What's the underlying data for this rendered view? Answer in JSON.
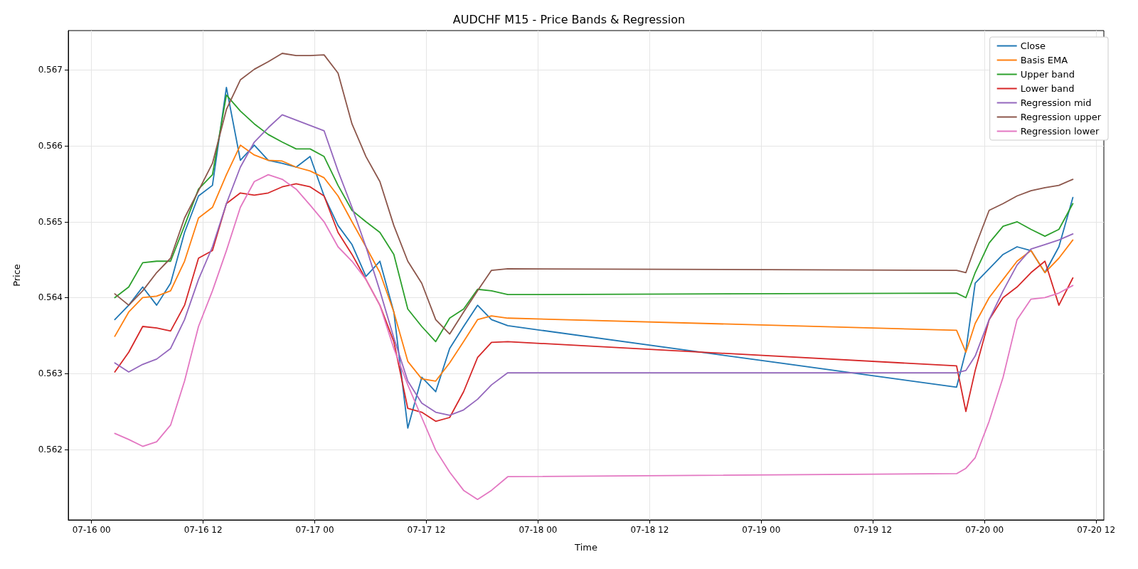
{
  "chart_data": {
    "type": "line",
    "title": "AUDCHF M15 - Price Bands & Regression",
    "xlabel": "Time",
    "ylabel": "Price",
    "x": [
      "--07-16T02:30",
      "--07-16T04:00",
      "--07-16T05:30",
      "--07-16T07:00",
      "--07-16T08:30",
      "--07-16T10:00",
      "--07-16T11:30",
      "--07-16T13:00",
      "--07-16T14:30",
      "--07-16T16:00",
      "--07-16T17:30",
      "--07-16T19:00",
      "--07-16T20:30",
      "--07-16T22:00",
      "--07-16T23:30",
      "--07-17T01:00",
      "--07-17T02:30",
      "--07-17T04:00",
      "--07-17T05:30",
      "--07-17T07:00",
      "--07-17T08:30",
      "--07-17T10:00",
      "--07-17T11:30",
      "--07-17T13:00",
      "--07-17T14:30",
      "--07-17T16:00",
      "--07-17T17:30",
      "--07-17T19:00",
      "--07-17T20:45",
      "--07-19T21:00",
      "--07-19T22:00",
      "--07-19T23:00",
      "--07-20T00:30",
      "--07-20T02:00",
      "--07-20T03:30",
      "--07-20T05:00",
      "--07-20T06:30",
      "--07-20T08:00",
      "--07-20T09:30"
    ],
    "series": [
      {
        "name": "Close",
        "color": "#1f77b4",
        "values": [
          0.56371,
          0.5639,
          0.56414,
          0.5639,
          0.56419,
          0.56486,
          0.56534,
          0.56548,
          0.56677,
          0.56581,
          0.56601,
          0.56581,
          0.56577,
          0.56572,
          0.56586,
          0.56534,
          0.56495,
          0.5647,
          0.56428,
          0.56448,
          0.56381,
          0.56228,
          0.56295,
          0.56276,
          0.56333,
          0.56362,
          0.5639,
          0.56371,
          0.56363,
          0.56282,
          0.5633,
          0.56419,
          0.56438,
          0.56457,
          0.56467,
          0.56462,
          0.56433,
          0.56467,
          0.56532
        ]
      },
      {
        "name": "Basis EMA",
        "color": "#ff7f0e",
        "values": [
          0.56349,
          0.56381,
          0.564,
          0.56402,
          0.56409,
          0.56448,
          0.56505,
          0.56519,
          0.56562,
          0.56601,
          0.56588,
          0.56581,
          0.5658,
          0.56572,
          0.56567,
          0.56558,
          0.56534,
          0.565,
          0.56467,
          0.56433,
          0.56381,
          0.56316,
          0.56293,
          0.5629,
          0.56314,
          0.56342,
          0.56371,
          0.56376,
          0.56373,
          0.56357,
          0.56328,
          0.56366,
          0.564,
          0.56424,
          0.56448,
          0.56462,
          0.56433,
          0.56452,
          0.56476
        ]
      },
      {
        "name": "Upper band",
        "color": "#2ca02c",
        "values": [
          0.564,
          0.56414,
          0.56446,
          0.56448,
          0.56448,
          0.56495,
          0.56543,
          0.56562,
          0.56667,
          0.56646,
          0.56629,
          0.56615,
          0.56605,
          0.56596,
          0.56596,
          0.56586,
          0.56548,
          0.56515,
          0.565,
          0.56486,
          0.56457,
          0.56385,
          0.56362,
          0.56342,
          0.56373,
          0.56385,
          0.56411,
          0.56409,
          0.56404,
          0.56406,
          0.564,
          0.56433,
          0.56472,
          0.56494,
          0.565,
          0.5649,
          0.56481,
          0.5649,
          0.56524
        ]
      },
      {
        "name": "Lower band",
        "color": "#d62728",
        "values": [
          0.56302,
          0.56328,
          0.56362,
          0.5636,
          0.56356,
          0.5639,
          0.56452,
          0.56462,
          0.56524,
          0.56538,
          0.56535,
          0.56538,
          0.56546,
          0.5655,
          0.56546,
          0.56534,
          0.56486,
          0.56457,
          0.56424,
          0.5639,
          0.56342,
          0.56254,
          0.56249,
          0.56237,
          0.56242,
          0.56276,
          0.56321,
          0.56341,
          0.56342,
          0.5631,
          0.5625,
          0.56304,
          0.56371,
          0.564,
          0.56414,
          0.56433,
          0.56448,
          0.5639,
          0.56426
        ]
      },
      {
        "name": "Regression mid",
        "color": "#9467bd",
        "values": [
          0.56314,
          0.56302,
          0.56312,
          0.56319,
          0.56333,
          0.56371,
          0.56424,
          0.56467,
          0.56524,
          0.56572,
          0.56605,
          0.56624,
          0.56641,
          0.56634,
          0.56627,
          0.5662,
          0.56567,
          0.56519,
          0.56467,
          0.56409,
          0.56347,
          0.5629,
          0.56261,
          0.56249,
          0.56245,
          0.56252,
          0.56266,
          0.56285,
          0.56301,
          0.56301,
          0.56304,
          0.56323,
          0.56371,
          0.56409,
          0.56443,
          0.56464,
          0.5647,
          0.56476,
          0.56484
        ]
      },
      {
        "name": "Regression upper",
        "color": "#8c564b",
        "values": [
          0.56405,
          0.5639,
          0.56409,
          0.56433,
          0.56452,
          0.56505,
          0.56541,
          0.56577,
          0.56648,
          0.56687,
          0.56701,
          0.56711,
          0.56722,
          0.56719,
          0.56719,
          0.5672,
          0.56696,
          0.56629,
          0.56586,
          0.56553,
          0.56495,
          0.56448,
          0.56419,
          0.56371,
          0.56352,
          0.56381,
          0.56409,
          0.56436,
          0.56438,
          0.56436,
          0.56433,
          0.56467,
          0.56515,
          0.56524,
          0.56534,
          0.56541,
          0.56545,
          0.56548,
          0.56556
        ]
      },
      {
        "name": "Regression lower",
        "color": "#e377c2",
        "values": [
          0.56221,
          0.56213,
          0.56204,
          0.5621,
          0.56232,
          0.5629,
          0.56362,
          0.56409,
          0.56462,
          0.56519,
          0.56553,
          0.56562,
          0.56556,
          0.56543,
          0.56522,
          0.565,
          0.56467,
          0.56448,
          0.56424,
          0.5639,
          0.56333,
          0.56285,
          0.56242,
          0.56199,
          0.5617,
          0.56146,
          0.56134,
          0.56146,
          0.56164,
          0.56168,
          0.56175,
          0.56189,
          0.56237,
          0.56295,
          0.56371,
          0.56398,
          0.564,
          0.56406,
          0.56416
        ]
      }
    ],
    "xlim": [
      "--07-15T21:30",
      "--07-20T12:50"
    ],
    "xticks": [
      {
        "value": "--07-16T00:00",
        "label": "07-16 00"
      },
      {
        "value": "--07-16T12:00",
        "label": "07-16 12"
      },
      {
        "value": "--07-17T00:00",
        "label": "07-17 00"
      },
      {
        "value": "--07-17T12:00",
        "label": "07-17 12"
      },
      {
        "value": "--07-18T00:00",
        "label": "07-18 00"
      },
      {
        "value": "--07-18T12:00",
        "label": "07-18 12"
      },
      {
        "value": "--07-19T00:00",
        "label": "07-19 00"
      },
      {
        "value": "--07-19T12:00",
        "label": "07-19 12"
      },
      {
        "value": "--07-20T00:00",
        "label": "07-20 00"
      },
      {
        "value": "--07-20T12:00",
        "label": "07-20 12"
      }
    ],
    "ylim": [
      0.56107,
      0.56752
    ],
    "yticks": [
      0.562,
      0.563,
      0.564,
      0.565,
      0.566,
      0.567
    ],
    "grid": true,
    "legend": "top right",
    "line_style": "solid",
    "marker": "none"
  }
}
